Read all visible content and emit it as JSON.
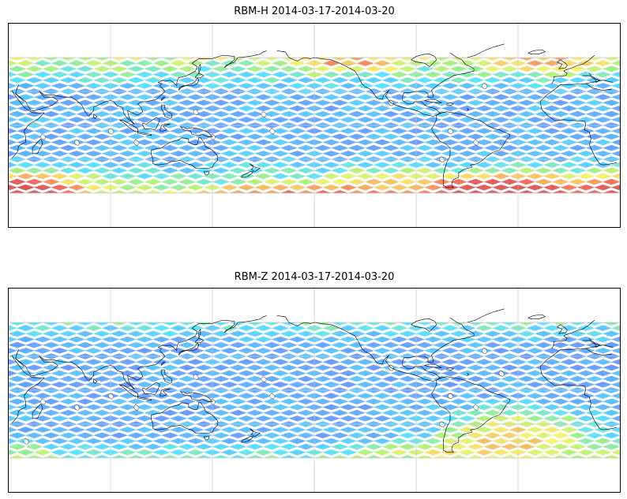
{
  "panels": [
    {
      "title": "RBM-H 2014-03-17-2014-03-20",
      "product": "RBM-H",
      "period": "2014-03-17-2014-03-20",
      "field_pattern": "high-latitude-enhanced"
    },
    {
      "title": "RBM-Z 2014-03-17-2014-03-20",
      "product": "RBM-Z",
      "period": "2014-03-17-2014-03-20",
      "field_pattern": "south-atlantic-enhanced"
    }
  ],
  "map": {
    "projection": "equirectangular",
    "central_meridian": 150,
    "lon_range": [
      30,
      390
    ],
    "lat_range": [
      -90,
      90
    ],
    "data_lat_range": [
      -60,
      60
    ],
    "gridlines": {
      "longitudes": [
        90,
        150,
        210,
        270,
        330
      ],
      "latitudes": [
        -60,
        -30,
        0,
        30,
        60
      ]
    },
    "colormap": [
      "#6f66ff",
      "#6b86ff",
      "#5fb0ff",
      "#55e0ff",
      "#a8f07a",
      "#f7f26a",
      "#f7b860",
      "#f46a5a",
      "#dd5555"
    ],
    "coastline_color": "#000000",
    "grid_color": "#cccccc",
    "missing_data_color": "#ffffff"
  }
}
